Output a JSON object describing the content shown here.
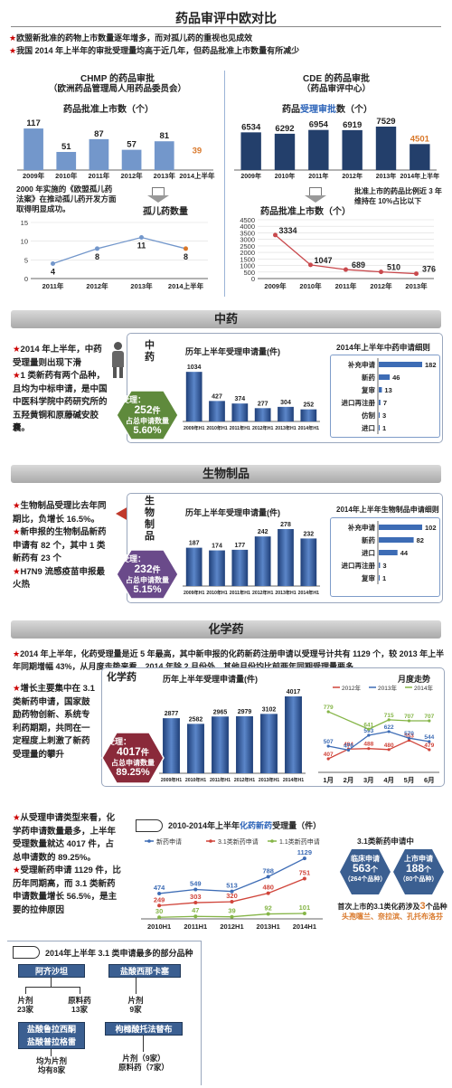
{
  "title": "药品审评中欧对比",
  "intro": [
    "欧盟新批准的药物上市数量逐年增多，而对孤儿药的重视也见成效",
    "我国 2014 年上半年的审批受理量均高于近几年，但药品批准上市数量有所减少"
  ],
  "eu": {
    "heading": "CHMP 的药品审批",
    "subheading": "（欧洲药品管理局人用药品委员会）",
    "bar_title": "药品批准上市数（个）",
    "note": "2000 年实施的《欧盟孤儿药法案》在推动孤儿药开发方面取得明显成功。",
    "orphan_label": "孤儿药数量"
  },
  "cn": {
    "heading": "CDE 的药品审批",
    "subheading": "（药品审评中心）",
    "bar_title_prefix": "药品",
    "bar_title_highlight": "受理审批",
    "bar_title_suffix": "数（个）",
    "note": "批准上市的药品比例近 3 年维持在 10%占比以下",
    "line_title": "药品批准上市数（个）"
  },
  "tcm": {
    "banner": "中药",
    "side_text_intro": "2014 年上半年，中药受理量则出现下滑",
    "side_text_body": "1 类新药有两个品种，且均为中标申请，是中国中医科学院中药研究所的五羟黄铜和原藤碱安胶囊。",
    "vertical_label": "中药",
    "chart_title": "历年上半年受理申请量(件)",
    "breakdown_title": "2014年上半年中药申请细则",
    "hex_line1": "受理：",
    "hex_value": "252",
    "hex_unit": "件",
    "hex_line3": "占总申请数量",
    "hex_pct": "5.60%"
  },
  "bio": {
    "banner": "生物制品",
    "side_text_1": "生物制品受理比去年同期比，负增长 16.5%。",
    "side_text_2": "新申报的生物制品新药申请有 82 个，其中 1 类新药有 23 个",
    "side_text_3": "H7N9 流感疫苗申报最火热",
    "vertical_label": "生物制品",
    "chart_title": "历年上半年受理申请量(件)",
    "breakdown_title": "2014年上半年生物制品申请细则",
    "hex_line1": "受理：",
    "hex_value": "232",
    "hex_unit": "件",
    "hex_line3": "占总申请数量",
    "hex_pct": "5.15%"
  },
  "chem": {
    "banner": "化学药",
    "summary": "2014 年上半年，化药受理量是近 5 年最高，其中新申报的化药新药注册申请以受理号计共有 1129 个，较 2013 年上半年同期增幅 43%，从月度走势来看，2014 年除 2 月份外，其他月份均比前两年同期受理量要多",
    "side_text_1": "增长主要集中在 3.1 类新药申请，国家鼓励药物创新、系统专利药期期，共同在一定程度上刺激了新药受理量的攀升",
    "side_text_2": "从受理申请类型来看，化学药申请数量最多，上半年受理数量就达 4017 件，占总申请数的 89.25%。",
    "side_text_3": "受理新药申请 1129 件，比历年同期高，而 3.1 类新药申请数量增长 56.5%，是主要的拉伸原因",
    "vertical_label": "化学药",
    "chart_title": "历年上半年受理申请量(件)",
    "monthly_title": "月度走势",
    "hex_line1": "受理：",
    "hex_value": "4017",
    "hex_unit": "件",
    "hex_line3": "占总申请数量",
    "hex_pct": "89.25%",
    "trend_title_prefix": "2010-2014年上半年",
    "trend_title_highlight": "化药新药",
    "trend_title_suffix": "受理量（件）",
    "class31_title": "3.1类新药申请中",
    "hex_a_line1": "临床申请",
    "hex_a_value": "563",
    "hex_a_unit": "个",
    "hex_a_line3": "（264个品种）",
    "hex_b_line1": "上市申请",
    "hex_b_value": "188",
    "hex_b_unit": "个",
    "hex_b_line3": "（80个品种）",
    "firstlaunch_text": "首次上市的3.1类化药涉及",
    "firstlaunch_count": "3",
    "firstlaunch_unit": "个品种",
    "firstlaunch_names": "头孢噻兰、奈拉滨、孔托布洛芬"
  },
  "flow": {
    "title": "2014年上半年 3.1 类申请最多的部分品种",
    "left_drug": "阿齐沙坦",
    "left_b1": "片剂",
    "left_b1_count": "23家",
    "left_b2": "原料药",
    "left_b2_count": "13家",
    "left_drug2a": "盐酸鲁拉西酮",
    "left_drug2b": "盐酸普拉格雷",
    "left_drug2_caption": "均为片剂",
    "left_drug2_count": "均有8家",
    "right_drug": "盐酸西那卡塞",
    "right_b1": "片剂",
    "right_b1_count": "9家",
    "right_drug2": "枸橼酸托法替布",
    "right_drug2_caption1": "片剂（9家）",
    "right_drug2_caption2": "原料药（7家）"
  },
  "chart_data": [
    {
      "id": "eu_bar",
      "type": "bar",
      "title": "药品批准上市数（个）",
      "categories": [
        "2009年",
        "2010年",
        "2011年",
        "2012年",
        "2013年",
        "2014上半年"
      ],
      "values": [
        117,
        51,
        87,
        57,
        81,
        39
      ],
      "highlight_color": "#d9782a",
      "bar_color": "#7397cb"
    },
    {
      "id": "eu_orphan",
      "type": "line",
      "categories": [
        "2011年",
        "2012年",
        "2013年",
        "2014上半年"
      ],
      "values": [
        4,
        8,
        11,
        8
      ],
      "yticks": [
        0,
        5,
        10,
        15
      ],
      "ylim": [
        0,
        15
      ]
    },
    {
      "id": "cn_bar",
      "type": "bar",
      "title": "药品受理审批数（个）",
      "categories": [
        "2009年",
        "2010年",
        "2011年",
        "2012年",
        "2013年",
        "2014年上半年"
      ],
      "values": [
        6534,
        6292,
        6954,
        6919,
        7529,
        4501
      ],
      "highlight_color": "#d9782a",
      "bar_color": "#233f6b"
    },
    {
      "id": "cn_line",
      "type": "line",
      "title": "药品批准上市数（个）",
      "categories": [
        "2009年",
        "2010年",
        "2011年",
        "2012年",
        "2013年"
      ],
      "values": [
        3334,
        1047,
        689,
        510,
        376
      ],
      "yticks": [
        0,
        500,
        1000,
        1500,
        2000,
        2500,
        3000,
        3500,
        4000,
        4500
      ],
      "ylim": [
        0,
        4500
      ]
    },
    {
      "id": "tcm_bar",
      "type": "bar",
      "categories": [
        "2009年H1",
        "2010年H1",
        "2011年H1",
        "2012年H1",
        "2013年H1",
        "2014年H1"
      ],
      "values": [
        1034,
        427,
        374,
        277,
        304,
        252
      ]
    },
    {
      "id": "tcm_breakdown",
      "type": "bar",
      "categories": [
        "补充申请",
        "新药",
        "复审",
        "进口再注册",
        "仿制",
        "进口"
      ],
      "values": [
        182,
        46,
        13,
        7,
        3,
        1
      ]
    },
    {
      "id": "bio_bar",
      "type": "bar",
      "categories": [
        "2009年H1",
        "2010年H1",
        "2011年H1",
        "2012年H1",
        "2013年H1",
        "2014年H1"
      ],
      "values": [
        187,
        174,
        177,
        242,
        278,
        232
      ]
    },
    {
      "id": "bio_breakdown",
      "type": "bar",
      "categories": [
        "补充申请",
        "新药",
        "进口",
        "进口再注册",
        "复审"
      ],
      "values": [
        102,
        82,
        44,
        3,
        1
      ]
    },
    {
      "id": "chem_bar",
      "type": "bar",
      "categories": [
        "2009年H1",
        "2010年H1",
        "2011年H1",
        "2012年H1",
        "2013年H1",
        "2014年H1"
      ],
      "values": [
        2877,
        2582,
        2965,
        2979,
        3102,
        4017
      ]
    },
    {
      "id": "chem_monthly",
      "type": "line",
      "categories": [
        "1月",
        "2月",
        "3月",
        "4月",
        "5月",
        "6月"
      ],
      "series": [
        {
          "name": "2012年",
          "color": "#d0443a",
          "values": [
            407,
            484,
            488,
            480,
            553,
            479
          ]
        },
        {
          "name": "2013年",
          "color": "#3d6cb5",
          "values": [
            507,
            476,
            593,
            622,
            570,
            544
          ]
        },
        {
          "name": "2014年",
          "color": "#85b547",
          "values": [
            779,
            null,
            641,
            715,
            707,
            707
          ]
        }
      ]
    },
    {
      "id": "chem_trend",
      "type": "line",
      "categories": [
        "2010H1",
        "2011H1",
        "2012H1",
        "2013H1",
        "2014H1"
      ],
      "series": [
        {
          "name": "新药申请",
          "color": "#3d6cb5",
          "values": [
            474,
            549,
            513,
            788,
            1129
          ]
        },
        {
          "name": "3.1类新药申请",
          "color": "#d0443a",
          "values": [
            249,
            303,
            320,
            480,
            751
          ]
        },
        {
          "name": "1.1类新药申请",
          "color": "#85b547",
          "values": [
            30,
            47,
            39,
            92,
            101
          ]
        }
      ]
    }
  ]
}
